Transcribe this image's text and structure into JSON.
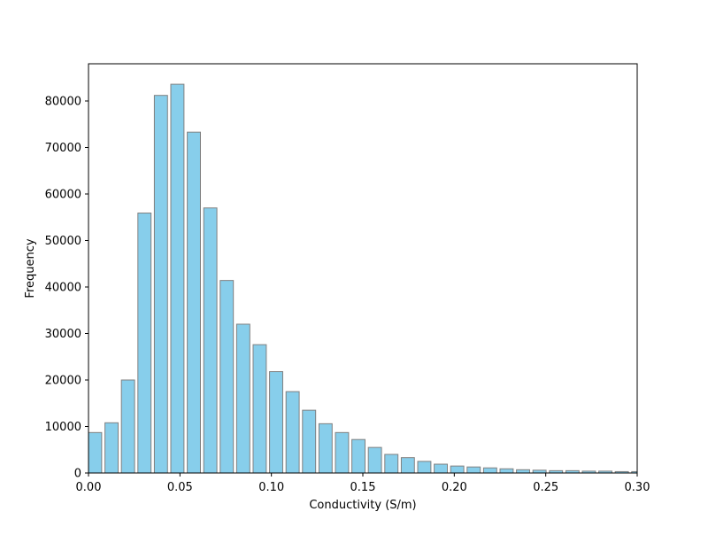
{
  "chart_data": {
    "type": "bar",
    "title": "",
    "xlabel": "Conductivity (S/m)",
    "ylabel": "Frequency",
    "xlim": [
      0,
      0.3
    ],
    "ylim": [
      0,
      88000
    ],
    "grid": false,
    "xticks": [
      0.0,
      0.05,
      0.1,
      0.15,
      0.2,
      0.25,
      0.3
    ],
    "xtick_labels": [
      "0.00",
      "0.05",
      "0.10",
      "0.15",
      "0.20",
      "0.25",
      "0.30"
    ],
    "yticks": [
      0,
      10000,
      20000,
      30000,
      40000,
      50000,
      60000,
      70000,
      80000
    ],
    "ytick_labels": [
      "0",
      "10000",
      "20000",
      "30000",
      "40000",
      "50000",
      "60000",
      "70000",
      "80000"
    ],
    "bin_width": 0.009,
    "bar_width": 0.0072,
    "bin_starts": [
      0.0,
      0.009,
      0.018,
      0.027,
      0.036,
      0.045,
      0.054,
      0.063,
      0.072,
      0.081,
      0.09,
      0.099,
      0.108,
      0.117,
      0.126,
      0.135,
      0.144,
      0.153,
      0.162,
      0.171,
      0.18,
      0.189,
      0.198,
      0.207,
      0.216,
      0.225,
      0.234,
      0.243,
      0.252,
      0.261,
      0.27,
      0.279,
      0.288,
      0.297
    ],
    "values": [
      8700,
      10800,
      20000,
      55900,
      81200,
      83600,
      73300,
      57000,
      41400,
      32000,
      27600,
      21800,
      17500,
      13500,
      10600,
      8700,
      7200,
      5500,
      4000,
      3300,
      2500,
      1900,
      1500,
      1300,
      1100,
      900,
      700,
      600,
      500,
      500,
      400,
      400,
      300,
      300
    ],
    "colors": {
      "bar_fill": "#87ceeb",
      "bar_edge": "#808080",
      "axes": "#000000"
    }
  }
}
